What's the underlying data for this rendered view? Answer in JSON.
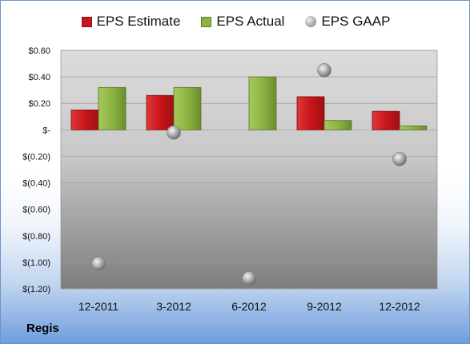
{
  "company": "Regis",
  "colors": {
    "estimate": "#c8151b",
    "actual": "#8db443",
    "gaap": "#a8a8a8"
  },
  "chart_data": {
    "type": "bar",
    "categories": [
      "12-2011",
      "3-2012",
      "6-2012",
      "9-2012",
      "12-2012"
    ],
    "series": [
      {
        "name": "EPS Estimate",
        "type": "bar",
        "values": [
          0.15,
          0.26,
          null,
          0.25,
          0.14
        ]
      },
      {
        "name": "EPS Actual",
        "type": "bar",
        "values": [
          0.32,
          0.32,
          0.4,
          0.07,
          0.03
        ]
      },
      {
        "name": "EPS GAAP",
        "type": "scatter",
        "values": [
          -1.01,
          -0.02,
          -1.12,
          0.45,
          -0.22
        ]
      }
    ],
    "ylim": [
      -1.2,
      0.6
    ],
    "yticks": [
      0.6,
      0.4,
      0.2,
      0,
      -0.2,
      -0.4,
      -0.6,
      -0.8,
      -1.0,
      -1.2
    ],
    "ytick_labels": [
      "$0.60",
      "$0.40",
      "$0.20",
      "$-",
      "$(0.20)",
      "$(0.40)",
      "$(0.60)",
      "$(0.80)",
      "$(1.00)",
      "$(1.20)"
    ],
    "grid": true,
    "legend_position": "top"
  }
}
